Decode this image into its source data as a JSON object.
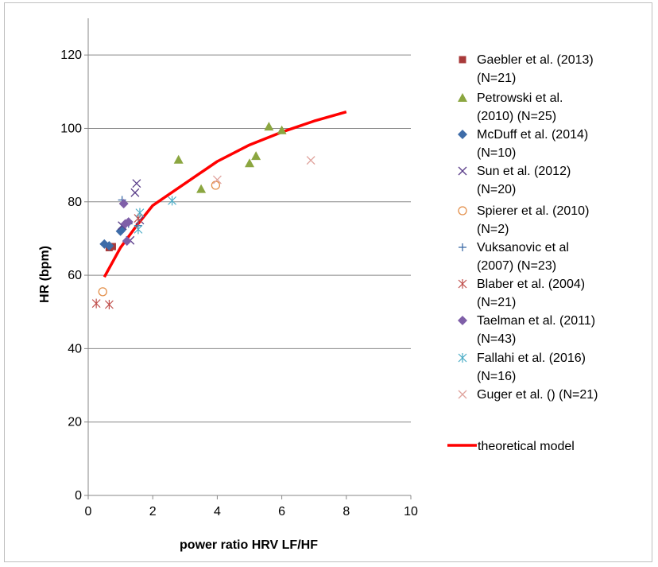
{
  "chart_data": {
    "type": "scatter",
    "title": "",
    "xlabel": "power ratio HRV LF/HF",
    "ylabel": "HR (bpm)",
    "xlim": [
      0,
      10
    ],
    "ylim": [
      0,
      130
    ],
    "xticks": [
      0,
      2,
      4,
      6,
      8,
      10
    ],
    "yticks": [
      0,
      20,
      40,
      60,
      80,
      100,
      120
    ],
    "grid": "horizontal",
    "legend_position": "right",
    "series": [
      {
        "name": "Gaebler et al. (2013) (N=21)",
        "marker": "square",
        "color": "#a83a3a",
        "points": [
          [
            0.65,
            67.5
          ],
          [
            0.75,
            67.8
          ]
        ]
      },
      {
        "name": "Petrowski et al. (2010) (N=25)",
        "marker": "triangle",
        "color": "#8ba640",
        "points": [
          [
            2.8,
            91.5
          ],
          [
            3.5,
            83.5
          ],
          [
            5.0,
            90.5
          ],
          [
            5.2,
            92.5
          ],
          [
            5.6,
            100.5
          ],
          [
            6.0,
            99.5
          ]
        ]
      },
      {
        "name": "McDuff et al. (2014) (N=10)",
        "marker": "diamond",
        "color": "#3e6ca8",
        "points": [
          [
            0.5,
            68.5
          ],
          [
            0.65,
            68.0
          ],
          [
            1.0,
            72.0
          ],
          [
            1.05,
            72.5
          ]
        ]
      },
      {
        "name": "Sun et al. (2012) (N=20)",
        "marker": "x",
        "color": "#5b3f8a",
        "points": [
          [
            1.05,
            73.5
          ],
          [
            1.3,
            69.5
          ],
          [
            1.45,
            82.5
          ],
          [
            1.5,
            85.0
          ],
          [
            1.6,
            75.0
          ]
        ]
      },
      {
        "name": "Spierer et al. (2010) (N=2)",
        "marker": "circle",
        "color": "#e38f4a",
        "points": [
          [
            0.45,
            55.5
          ],
          [
            3.95,
            84.5
          ]
        ]
      },
      {
        "name": "Vuksanovic et al (2007) (N=23)",
        "marker": "plus",
        "color": "#3e6ca8",
        "points": [
          [
            1.05,
            80.5
          ],
          [
            1.25,
            74.0
          ],
          [
            1.55,
            73.5
          ]
        ]
      },
      {
        "name": "Blaber et al. (2004) (N=21)",
        "marker": "asterisk",
        "color": "#c0504d",
        "points": [
          [
            0.25,
            52.3
          ],
          [
            0.65,
            52.0
          ],
          [
            1.55,
            75.5
          ]
        ]
      },
      {
        "name": "Taelman et al. (2011) (N=43)",
        "marker": "diamond",
        "color": "#7f5fa8",
        "points": [
          [
            1.1,
            79.5
          ],
          [
            1.15,
            74.0
          ],
          [
            1.2,
            69.3
          ],
          [
            1.25,
            74.5
          ]
        ]
      },
      {
        "name": "Fallahi et al. (2016) (N=16)",
        "marker": "asterisk",
        "color": "#4bacc6",
        "points": [
          [
            1.55,
            72.5
          ],
          [
            1.6,
            77.0
          ],
          [
            2.6,
            80.3
          ]
        ]
      },
      {
        "name": "Guger et al. () (N=21)",
        "marker": "x",
        "color": "#e0a49e",
        "points": [
          [
            4.0,
            86.0
          ],
          [
            6.9,
            91.3
          ]
        ]
      }
    ],
    "model": {
      "name": "theoretical model",
      "color": "#ff0000",
      "x": [
        0.5,
        1.0,
        1.5,
        2.0,
        3.0,
        4.0,
        5.0,
        6.0,
        7.0,
        8.0
      ],
      "y": [
        59.5,
        67.5,
        73.5,
        79.0,
        85.0,
        91.0,
        95.5,
        99.0,
        102.0,
        104.5
      ]
    }
  }
}
